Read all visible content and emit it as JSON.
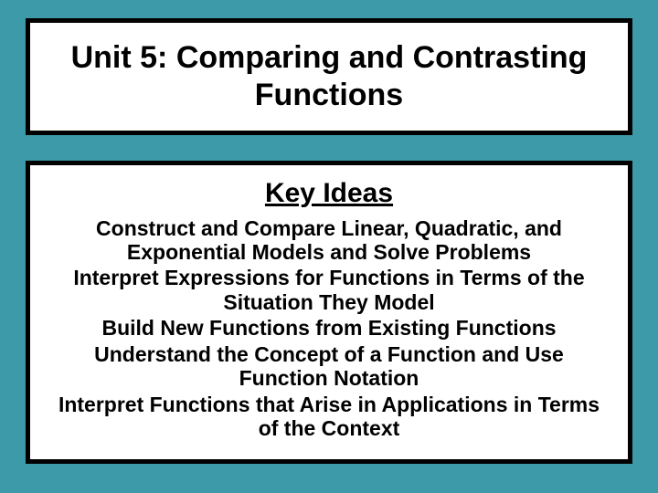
{
  "slide": {
    "background_color": "#3d9aa8",
    "box_border_color": "#000000",
    "box_background_color": "#ffffff",
    "title": "Unit 5:  Comparing and Contrasting Functions",
    "subtitle": "Key Ideas",
    "ideas": [
      "Construct and Compare Linear, Quadratic, and Exponential Models and Solve Problems",
      "Interpret Expressions for Functions in Terms of the Situation They Model",
      "Build New Functions from Existing Functions",
      "Understand the Concept of a Function and Use Function Notation",
      "Interpret Functions that Arise in Applications in Terms of the Context"
    ],
    "title_fontsize": 34,
    "subtitle_fontsize": 30,
    "idea_fontsize": 23
  }
}
